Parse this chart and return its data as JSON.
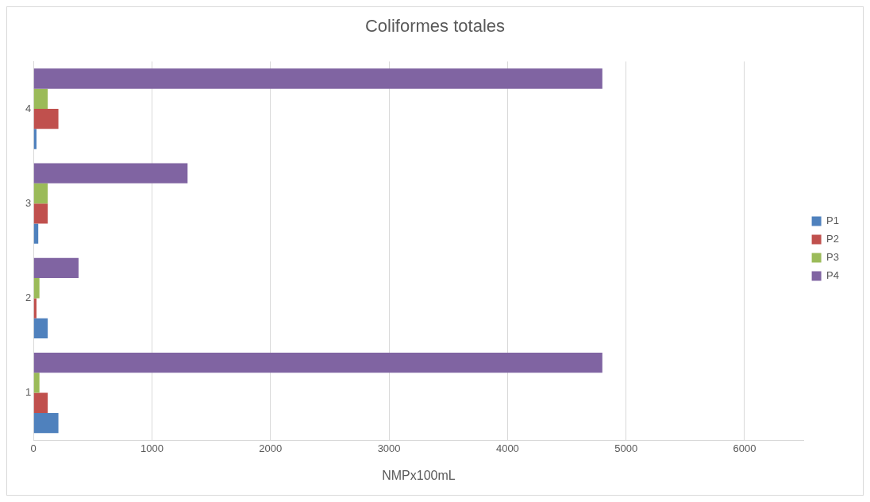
{
  "chart_data": {
    "type": "bar",
    "orientation": "horizontal",
    "title": "Coliformes totales",
    "xlabel": "NMPx100mL",
    "categories": [
      "4",
      "3",
      "2",
      "1"
    ],
    "series": [
      {
        "name": "P1",
        "color": "#4f81bd",
        "values": [
          25,
          40,
          120,
          210
        ]
      },
      {
        "name": "P2",
        "color": "#c0504d",
        "values": [
          210,
          120,
          25,
          120
        ]
      },
      {
        "name": "P3",
        "color": "#9bbb59",
        "values": [
          120,
          120,
          50,
          50
        ]
      },
      {
        "name": "P4",
        "color": "#8064a2",
        "values": [
          4800,
          1300,
          380,
          4800
        ]
      }
    ],
    "xlim": [
      0,
      6500
    ],
    "xticks": [
      0,
      1000,
      2000,
      3000,
      4000,
      5000,
      6000
    ],
    "grid": "x",
    "legend": "right"
  }
}
